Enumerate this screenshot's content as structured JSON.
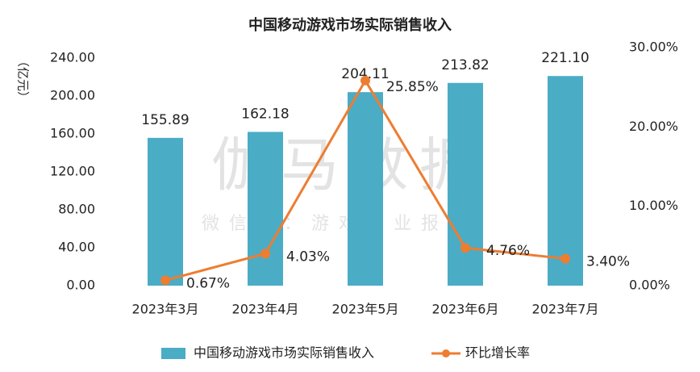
{
  "chart_data": {
    "type": "bar-line",
    "title": "中国移动游戏市场实际销售收入",
    "y_label": "（亿元）",
    "watermark": "伽马数据",
    "watermark_subtitle": "微信号：游戏产业报告",
    "categories": [
      "2023年3月",
      "2023年4月",
      "2023年5月",
      "2023年6月",
      "2023年7月"
    ],
    "series": [
      {
        "name": "中国移动游戏市场实际销售收入",
        "type": "bar",
        "color": "#4bacc6",
        "values": [
          155.89,
          162.18,
          204.11,
          213.82,
          221.1
        ],
        "value_labels": [
          "155.89",
          "162.18",
          "204.11",
          "213.82",
          "221.10"
        ]
      },
      {
        "name": "环比增长率",
        "type": "line",
        "axis": "y2",
        "color": "#ed7d31",
        "values": [
          0.67,
          4.03,
          25.85,
          4.76,
          3.4
        ],
        "value_labels": [
          "0.67%",
          "4.03%",
          "25.85%",
          "4.76%",
          "3.40%"
        ]
      }
    ],
    "ylim": [
      0,
      240
    ],
    "yticks": [
      {
        "value": 0,
        "label": "0.00"
      },
      {
        "value": 40,
        "label": "40.00"
      },
      {
        "value": 80,
        "label": "80.00"
      },
      {
        "value": 120,
        "label": "120.00"
      },
      {
        "value": 160,
        "label": "160.00"
      },
      {
        "value": 200,
        "label": "200.00"
      },
      {
        "value": 240,
        "label": "240.00"
      }
    ],
    "y2lim": [
      0,
      30
    ],
    "y2ticks": [
      {
        "value": 0,
        "label": "0.00%"
      },
      {
        "value": 10,
        "label": "10.00%"
      },
      {
        "value": 20,
        "label": "20.00%"
      },
      {
        "value": 30,
        "label": "30.00%"
      }
    ],
    "grid": false,
    "legend": "bottom"
  }
}
